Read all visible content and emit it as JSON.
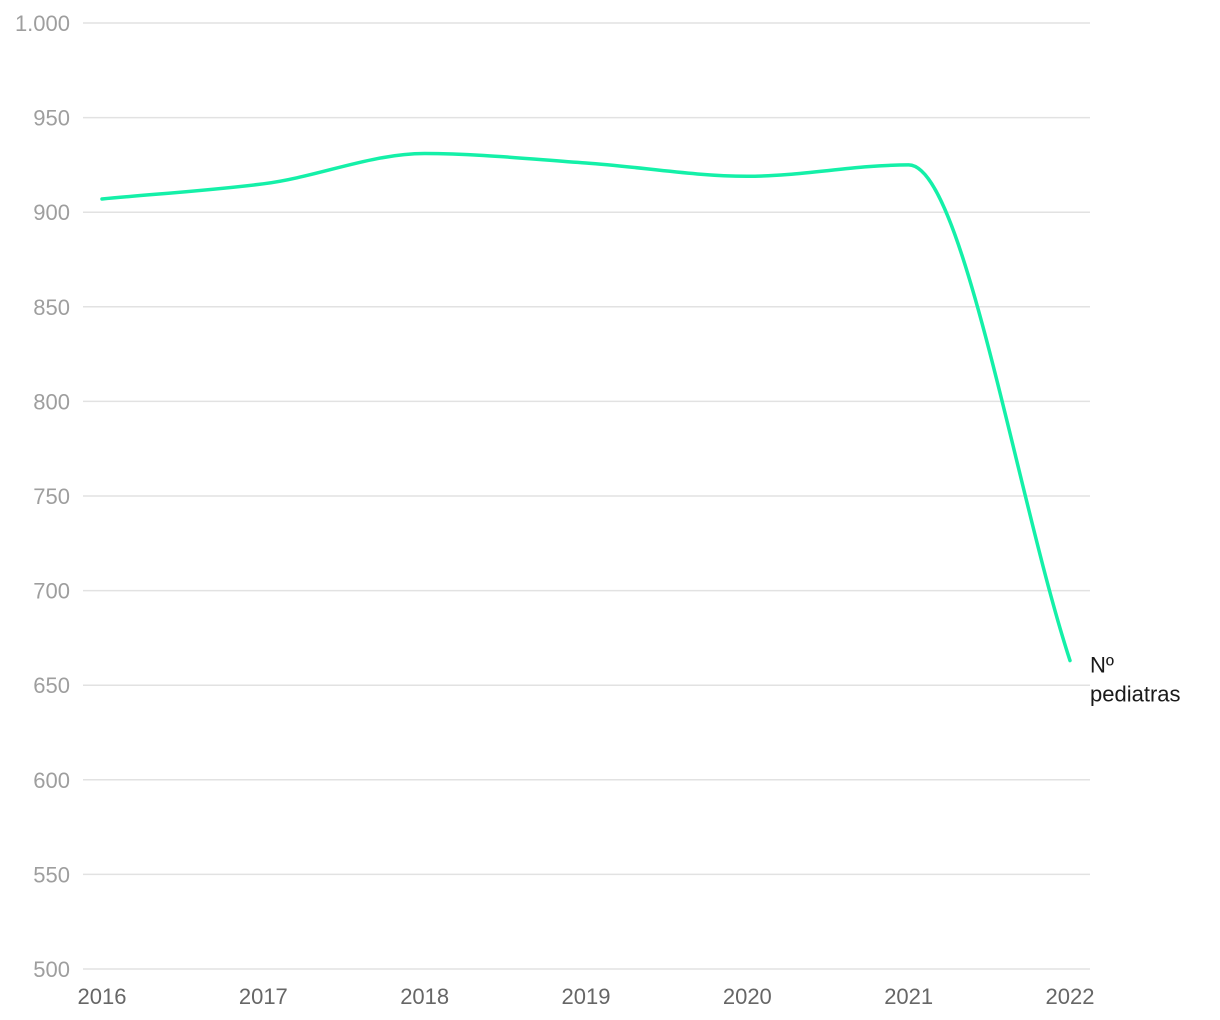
{
  "chart_data": {
    "type": "line",
    "title": "",
    "xlabel": "",
    "ylabel": "",
    "x": [
      "2016",
      "2017",
      "2018",
      "2019",
      "2020",
      "2021",
      "2022"
    ],
    "ylim": [
      500,
      1000
    ],
    "yticks": [
      "500",
      "550",
      "600",
      "650",
      "700",
      "750",
      "800",
      "850",
      "900",
      "950",
      "1.000"
    ],
    "grid": true,
    "series": [
      {
        "name": "Nº pediatras",
        "label_lines": [
          "Nº",
          "pediatras"
        ],
        "color": "#14f0a8",
        "values": [
          907,
          915,
          931,
          926,
          919,
          925,
          663
        ]
      }
    ]
  }
}
